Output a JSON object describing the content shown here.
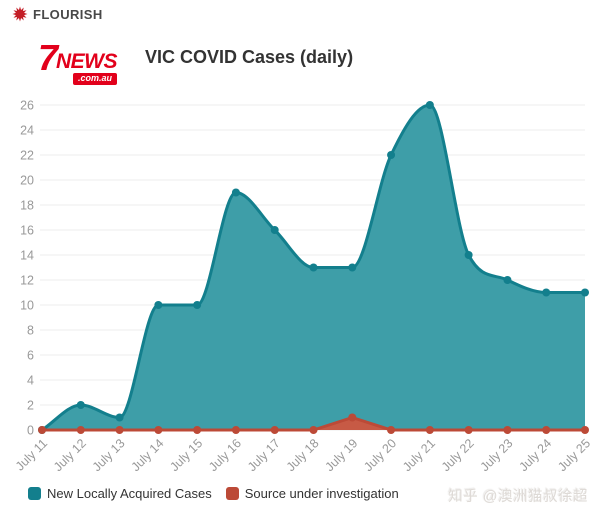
{
  "flourish": {
    "label": "FLOURISH",
    "icon_color": "#C41E27"
  },
  "logo": {
    "seven": "7",
    "news": "NEWS",
    "domain": ".com.au",
    "brand_color": "#E2001B"
  },
  "chart_data": {
    "type": "area",
    "title": "VIC COVID Cases (daily)",
    "xlabel": "",
    "ylabel": "",
    "categories": [
      "July 11",
      "July 12",
      "July 13",
      "July 14",
      "July 15",
      "July 16",
      "July 17",
      "July 18",
      "July 19",
      "July 20",
      "July 21",
      "July 22",
      "July 23",
      "July 24",
      "July 25"
    ],
    "series": [
      {
        "name": "New Locally Acquired Cases",
        "values": [
          0,
          2,
          1,
          10,
          10,
          19,
          16,
          13,
          13,
          22,
          26,
          14,
          12,
          11,
          11
        ],
        "fill": "#3E9EA8",
        "stroke": "#137F8D",
        "curve": "monotone"
      },
      {
        "name": "Source under investigation",
        "values": [
          0,
          0,
          0,
          0,
          0,
          0,
          0,
          0,
          1,
          0,
          0,
          0,
          0,
          0,
          0
        ],
        "fill": "#C75A45",
        "stroke": "#BC4A37",
        "curve": "linear"
      }
    ],
    "ylim": [
      0,
      26
    ],
    "yticks": [
      0,
      2,
      4,
      6,
      8,
      10,
      12,
      14,
      16,
      18,
      20,
      22,
      24,
      26
    ],
    "grid": "horizontal",
    "gridline_color": "#ececec",
    "tick_label_color": "#999999",
    "legend_position": "bottom-left"
  },
  "watermark": {
    "text": "知乎 @澳洲猫叔徐超"
  }
}
